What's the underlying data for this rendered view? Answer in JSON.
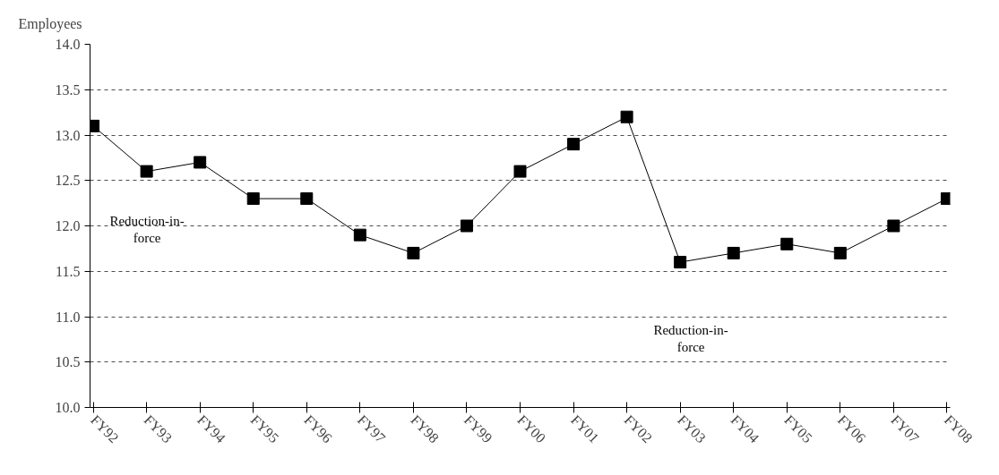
{
  "chart_data": {
    "type": "line",
    "ylabel": "Employees",
    "categories": [
      "FY92",
      "FY93",
      "FY94",
      "FY95",
      "FY96",
      "FY97",
      "FY98",
      "FY99",
      "FY00",
      "FY01",
      "FY02",
      "FY03",
      "FY04",
      "FY05",
      "FY06",
      "FY07",
      "FY08"
    ],
    "series": [
      {
        "color": "#000000",
        "values": [
          13.1,
          12.6,
          12.7,
          12.3,
          12.3,
          11.9,
          11.7,
          12.0,
          12.6,
          12.9,
          13.2,
          11.6,
          11.7,
          11.8,
          11.7,
          12.0,
          12.3
        ]
      }
    ],
    "ylim": [
      10.0,
      14.0
    ],
    "yticks": [
      {
        "value": 10,
        "label": "10.0"
      },
      {
        "value": 10.5,
        "label": "10.5"
      },
      {
        "value": 11,
        "label": "11.0"
      },
      {
        "value": 11.5,
        "label": "11.5"
      },
      {
        "value": 12,
        "label": "12.0"
      },
      {
        "value": 12.5,
        "label": "12.5"
      },
      {
        "value": 13,
        "label": "13.0"
      },
      {
        "value": 13.5,
        "label": "13.5"
      },
      {
        "value": 14,
        "label": "14.0"
      }
    ],
    "grid": "y",
    "marker": "square",
    "line_style": "solid",
    "annotations": [
      "Reduction-in-\nforce",
      "Reduction-in-\nforce"
    ]
  }
}
